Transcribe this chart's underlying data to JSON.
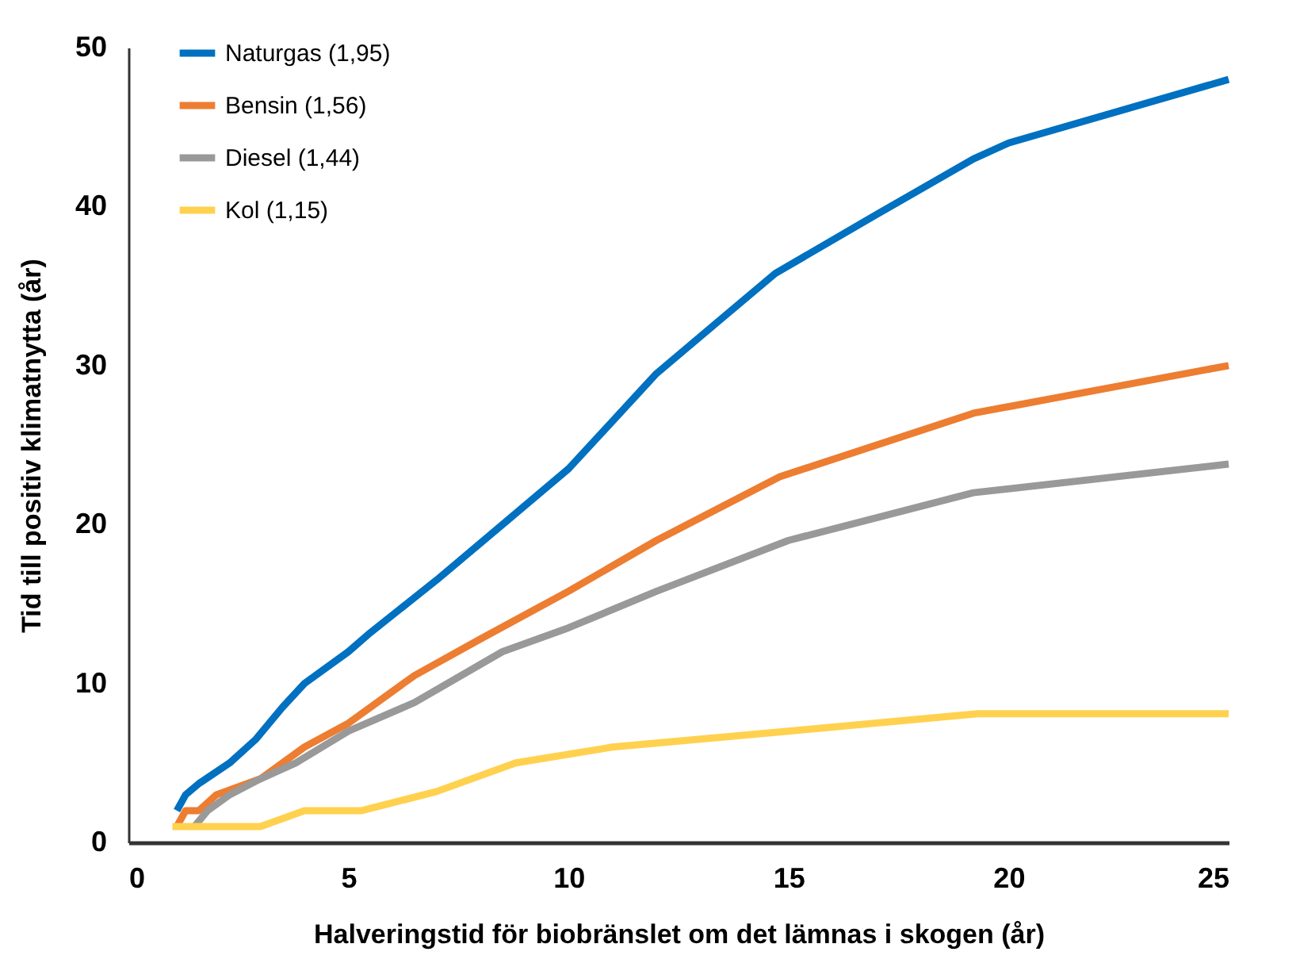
{
  "chart_data": {
    "type": "line",
    "xlabel": "Halveringstid för biobränslet om det lämnas i skogen (år)",
    "ylabel": "Tid till positiv klimatnytta (år)",
    "xlim": [
      0,
      25
    ],
    "xticks": [
      0,
      5,
      10,
      15,
      20,
      25
    ],
    "ylim": [
      0,
      50
    ],
    "yticks": [
      0,
      10,
      20,
      30,
      40,
      50
    ],
    "legend": "top left",
    "grid": false,
    "line_style": "solid",
    "marker": "none",
    "series": [
      {
        "name": "Naturgas (1,95)",
        "color": "#0070c0",
        "x": [
          1.1,
          1.3,
          1.6,
          2.3,
          2.9,
          3.5,
          4,
          5,
          5.5,
          7,
          8.5,
          10,
          11.5,
          12,
          13.5,
          14.7,
          17,
          19.2,
          20,
          25
        ],
        "values": [
          2,
          3,
          3.7,
          5,
          6.5,
          8.5,
          10,
          12,
          13.2,
          16.5,
          20,
          23.5,
          28,
          29.5,
          33,
          35.8,
          39.5,
          43,
          44,
          48
        ]
      },
      {
        "name": "Bensin (1,56)",
        "color": "#ed7d31",
        "x": [
          1.1,
          1.3,
          1.6,
          2,
          3,
          4,
          5,
          6.5,
          8,
          10,
          12,
          14.8,
          19.2,
          25
        ],
        "values": [
          1,
          2,
          2,
          3,
          4,
          6,
          7.5,
          10.5,
          12.8,
          15.8,
          19,
          23,
          27,
          30
        ]
      },
      {
        "name": "Diesel (1,44)",
        "color": "#999999",
        "x": [
          1.5,
          1.8,
          2.3,
          3,
          3.8,
          5,
          6.5,
          8.5,
          10,
          12,
          15,
          19.2,
          25
        ],
        "values": [
          1,
          2,
          3,
          4,
          5,
          7,
          8.8,
          12,
          13.5,
          15.8,
          19,
          22,
          23.8
        ]
      },
      {
        "name": "Kol (1,15)",
        "color": "#ffd14f",
        "x": [
          1,
          3,
          4,
          5.3,
          7,
          8.8,
          11,
          15,
          19.3,
          25
        ],
        "values": [
          1,
          1,
          2,
          2,
          3.2,
          5,
          6,
          7,
          8.1,
          8.1
        ]
      }
    ]
  }
}
